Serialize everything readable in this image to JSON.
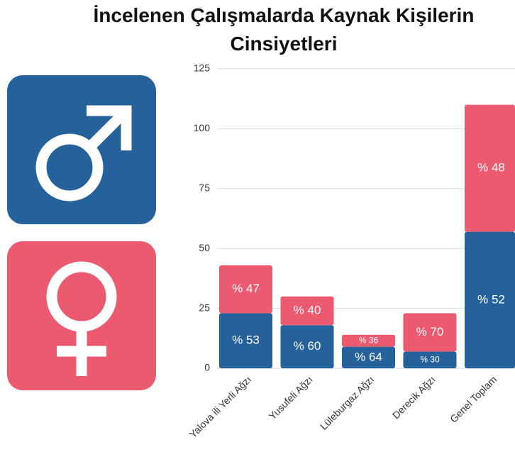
{
  "chart_data": {
    "type": "stacked_bar",
    "title": "İncelenen Çalışmalarda Kaynak Kişilerin Cinsiyetleri",
    "categories": [
      "Yalova ili Yerli Ağzı",
      "Yusufeli Ağzı",
      "Lüleburgaz Ağzı",
      "Derecik Ağzı",
      "Genel Toplam"
    ],
    "series": [
      {
        "color": "#25619a",
        "values": [
          23,
          18,
          9,
          7,
          57
        ],
        "segment_labels": [
          "% 53",
          "% 60",
          "% 64",
          "% 30",
          "% 52"
        ]
      },
      {
        "color": "#ec5a70",
        "values": [
          20,
          12,
          5,
          16,
          53
        ],
        "segment_labels": [
          "% 47",
          "% 40",
          "% 36",
          "% 70",
          "% 48"
        ]
      }
    ],
    "ylim": [
      0,
      125
    ],
    "yticks": [
      0,
      25,
      50,
      75,
      100,
      125
    ],
    "grid": true
  }
}
